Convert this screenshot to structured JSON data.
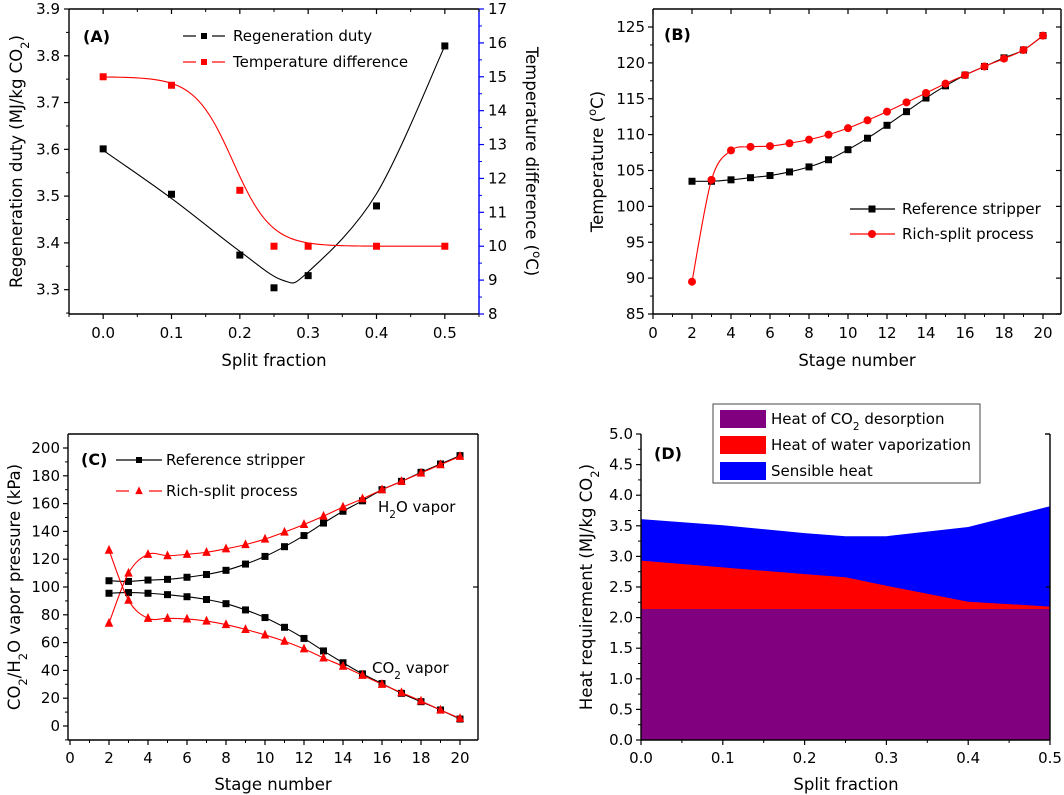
{
  "chart_data": [
    {
      "panel": "A",
      "type": "scatter",
      "panel_label": "(A)",
      "xlabel": "Split  fraction",
      "ylabel": "Regeneration duty (MJ/kg CO2)",
      "ylabel_parts": [
        "Regeneration duty (MJ/kg CO",
        "2",
        ")"
      ],
      "y2label": "Temperature difference (oC)",
      "y2label_parts": [
        "Temperature difference (",
        "o",
        "C)"
      ],
      "xlim": [
        -0.05,
        0.55
      ],
      "ylim": [
        3.248,
        3.9
      ],
      "y2lim": [
        8,
        17
      ],
      "xticks": [
        0.0,
        0.1,
        0.2,
        0.3,
        0.4,
        0.5
      ],
      "xtick_labels": [
        "0.0",
        "0.1",
        "0.2",
        "0.3",
        "0.4",
        "0.5"
      ],
      "yticks": [
        3.3,
        3.4,
        3.5,
        3.6,
        3.7,
        3.8,
        3.9
      ],
      "ytick_labels": [
        "3.3",
        "3.4",
        "3.5",
        "3.6",
        "3.7",
        "3.8",
        "3.9"
      ],
      "y2ticks": [
        8,
        9,
        10,
        11,
        12,
        13,
        14,
        15,
        16,
        17
      ],
      "y2tick_labels": [
        "8",
        "9",
        "10",
        "11",
        "12",
        "13",
        "14",
        "15",
        "16",
        "17"
      ],
      "y2_axis_color": "#0000ff",
      "legend_position": "top-center",
      "series": [
        {
          "name": "Regeneration duty",
          "axis": "left",
          "color": "#000000",
          "marker": "square",
          "x": [
            0.0,
            0.1,
            0.2,
            0.25,
            0.3,
            0.4,
            0.5
          ],
          "values": [
            3.601,
            3.504,
            3.374,
            3.304,
            3.33,
            3.479,
            3.821
          ],
          "fit_curve": "smooth"
        },
        {
          "name": "Temperature difference",
          "axis": "right",
          "color": "#ff0000",
          "marker": "square",
          "x": [
            0.0,
            0.1,
            0.2,
            0.25,
            0.3,
            0.4,
            0.5
          ],
          "values": [
            15.0,
            14.75,
            11.65,
            10.0,
            10.0,
            10.0,
            10.0
          ],
          "fit_curve": "sigmoid"
        }
      ]
    },
    {
      "panel": "B",
      "type": "line",
      "panel_label": "(B)",
      "xlabel": "Stage number",
      "ylabel": "Temperature (oC)",
      "ylabel_parts": [
        "Temperature (",
        "o",
        "C)"
      ],
      "xlim": [
        0,
        20.9
      ],
      "ylim": [
        85,
        127
      ],
      "xticks": [
        0,
        2,
        4,
        6,
        8,
        10,
        12,
        14,
        16,
        18,
        20
      ],
      "xtick_labels": [
        "0",
        "2",
        "4",
        "6",
        "8",
        "10",
        "12",
        "14",
        "16",
        "18",
        "20"
      ],
      "yticks": [
        85,
        90,
        95,
        100,
        105,
        110,
        115,
        120,
        125
      ],
      "ytick_labels": [
        "85",
        "90",
        "95",
        "100",
        "105",
        "110",
        "115",
        "120",
        "125"
      ],
      "legend_position": "center-right",
      "x": [
        2,
        3,
        4,
        5,
        6,
        7,
        8,
        9,
        10,
        11,
        12,
        13,
        14,
        15,
        16,
        17,
        18,
        19,
        20
      ],
      "series": [
        {
          "name": "Reference stripper",
          "color": "#000000",
          "marker": "square",
          "values": [
            103.5,
            103.5,
            103.7,
            104.0,
            104.3,
            104.8,
            105.5,
            106.5,
            107.9,
            109.5,
            111.3,
            113.2,
            115.1,
            116.8,
            118.3,
            119.5,
            120.7,
            121.8,
            123.8
          ]
        },
        {
          "name": "Rich-split process",
          "color": "#ff0000",
          "marker": "circle",
          "values": [
            89.5,
            103.7,
            107.8,
            108.3,
            108.4,
            108.8,
            109.3,
            110.0,
            110.9,
            112.0,
            113.2,
            114.5,
            115.8,
            117.1,
            118.3,
            119.5,
            120.6,
            121.8,
            123.8
          ]
        }
      ]
    },
    {
      "panel": "C",
      "type": "line",
      "panel_label": "(C)",
      "xlabel": "Stage number",
      "ylabel": "CO2/H2O vapor pressure  (kPa)",
      "ylabel_parts": [
        "CO",
        "2",
        "/H",
        "2",
        "O vapor pressure  (kPa)"
      ],
      "xlim": [
        0,
        20.9
      ],
      "ylim": [
        -10,
        210
      ],
      "xticks": [
        0,
        2,
        4,
        6,
        8,
        10,
        12,
        14,
        16,
        18,
        20
      ],
      "xtick_labels": [
        "0",
        "2",
        "4",
        "6",
        "8",
        "10",
        "12",
        "14",
        "16",
        "18",
        "20"
      ],
      "yticks": [
        0,
        20,
        40,
        60,
        80,
        100,
        120,
        140,
        160,
        180,
        200
      ],
      "ytick_labels": [
        "0",
        "20",
        "40",
        "60",
        "80",
        "100",
        "120",
        "140",
        "160",
        "180",
        "200"
      ],
      "legend_position": "top-left",
      "annotations": [
        {
          "text_parts": [
            "H",
            "2",
            "O vapor"
          ],
          "near": "upper-right"
        },
        {
          "text_parts": [
            "CO",
            "2",
            " vapor"
          ],
          "near": "lower-right"
        }
      ],
      "x": [
        2,
        3,
        4,
        5,
        6,
        7,
        8,
        9,
        10,
        11,
        12,
        13,
        14,
        15,
        16,
        17,
        18,
        19,
        20
      ],
      "series": [
        {
          "name": "Reference stripper",
          "component": "H2O vapor",
          "color": "#000000",
          "marker": "square",
          "values": [
            104.5,
            104,
            105,
            105.5,
            107,
            109,
            112,
            116.5,
            122,
            129,
            137,
            146,
            154.5,
            162,
            170,
            176,
            182.5,
            188.5,
            194.5
          ]
        },
        {
          "name": "Rich-split process",
          "component": "H2O vapor",
          "color": "#ff0000",
          "marker": "triangle",
          "values": [
            74,
            110,
            123.5,
            122.5,
            123.5,
            125,
            127.5,
            130.5,
            134.5,
            139.5,
            145,
            151,
            157.5,
            163.5,
            170,
            176,
            182,
            188,
            194
          ]
        },
        {
          "name": "Reference stripper",
          "component": "CO2 vapor",
          "color": "#000000",
          "marker": "square",
          "values": [
            95.5,
            96,
            95.5,
            94.5,
            93,
            91,
            88,
            83.5,
            78,
            71,
            63,
            54,
            45.5,
            37.5,
            30.5,
            23.5,
            17.5,
            11.5,
            5
          ]
        },
        {
          "name": "Rich-split process",
          "component": "CO2 vapor",
          "color": "#ff0000",
          "marker": "triangle",
          "values": [
            126.5,
            90.5,
            77.5,
            77.5,
            77,
            75.5,
            73,
            69.5,
            65.5,
            61,
            55.5,
            49,
            43,
            36.5,
            30,
            24,
            18,
            11.5,
            5.5
          ]
        }
      ],
      "legend": [
        {
          "name": "Reference stripper",
          "color": "#000000",
          "marker": "square"
        },
        {
          "name": "Rich-split process",
          "color": "#ff0000",
          "marker": "triangle"
        }
      ]
    },
    {
      "panel": "D",
      "type": "area",
      "panel_label": "(D)",
      "xlabel": "Split fraction",
      "ylabel": "Heat requirement (MJ/kg CO2)",
      "ylabel_parts": [
        "Heat requirement (MJ/kg CO",
        "2",
        ")"
      ],
      "xlim": [
        0,
        0.5
      ],
      "ylim": [
        0,
        5
      ],
      "xticks": [
        0.0,
        0.1,
        0.2,
        0.3,
        0.4,
        0.5
      ],
      "xtick_labels": [
        "0.0",
        "0.1",
        "0.2",
        "0.3",
        "0.4",
        "0.5"
      ],
      "yticks": [
        0,
        0.5,
        1.0,
        1.5,
        2.0,
        2.5,
        3.0,
        3.5,
        4.0,
        4.5,
        5.0
      ],
      "ytick_labels": [
        "0.0",
        "0.5",
        "1.0",
        "1.5",
        "2.0",
        "2.5",
        "3.0",
        "3.5",
        "4.0",
        "4.5",
        "5.0"
      ],
      "legend_position": "top-center (boxed)",
      "stacked": true,
      "x": [
        0.0,
        0.1,
        0.2,
        0.25,
        0.3,
        0.4,
        0.5
      ],
      "series": [
        {
          "name": "Heat of CO2 desorption",
          "name_parts": [
            "Heat of CO",
            "2",
            " desorption"
          ],
          "color": "#800080",
          "cumulative_top": [
            2.14,
            2.14,
            2.14,
            2.14,
            2.14,
            2.14,
            2.14
          ]
        },
        {
          "name": "Heat of water vaporization",
          "name_parts": [
            "Heat of water vaporization"
          ],
          "color": "#ff0000",
          "cumulative_top": [
            2.93,
            2.82,
            2.71,
            2.66,
            2.52,
            2.26,
            2.18
          ]
        },
        {
          "name": "Sensible heat",
          "name_parts": [
            "Sensible heat"
          ],
          "color": "#0000ff",
          "cumulative_top": [
            3.61,
            3.51,
            3.38,
            3.33,
            3.33,
            3.48,
            3.82
          ]
        }
      ]
    }
  ]
}
